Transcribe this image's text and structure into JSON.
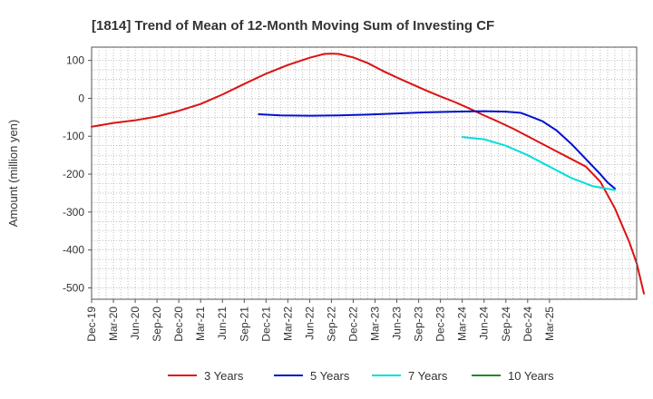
{
  "chart_data": {
    "type": "line",
    "title": "[1814]  Trend of Mean of 12-Month Moving Sum of Investing CF",
    "xlabel": "",
    "ylabel": "Amount (million yen)",
    "ylim": [
      -530,
      135
    ],
    "yticks": [
      100,
      0,
      -100,
      -200,
      -300,
      -400,
      -500
    ],
    "xlim_months": [
      0,
      75
    ],
    "x_tick_labels": [
      "Dec-19",
      "Mar-20",
      "Jun-20",
      "Sep-20",
      "Dec-20",
      "Mar-21",
      "Jun-21",
      "Sep-21",
      "Dec-21",
      "Mar-22",
      "Jun-22",
      "Sep-22",
      "Dec-22",
      "Mar-23",
      "Jun-23",
      "Sep-23",
      "Dec-23",
      "Mar-24",
      "Jun-24",
      "Sep-24",
      "Dec-24",
      "Mar-25"
    ],
    "grid": true,
    "legend_position": "bottom",
    "series": [
      {
        "name": "3 Years",
        "color": "#dd1111",
        "points": [
          [
            0,
            -75
          ],
          [
            3,
            -65
          ],
          [
            6,
            -58
          ],
          [
            9,
            -48
          ],
          [
            12,
            -33
          ],
          [
            15,
            -15
          ],
          [
            18,
            10
          ],
          [
            21,
            38
          ],
          [
            24,
            65
          ],
          [
            27,
            88
          ],
          [
            30,
            107
          ],
          [
            32,
            117
          ],
          [
            33,
            118
          ],
          [
            34,
            117
          ],
          [
            36,
            108
          ],
          [
            38,
            93
          ],
          [
            40,
            73
          ],
          [
            42,
            55
          ],
          [
            44,
            38
          ],
          [
            46,
            21
          ],
          [
            48,
            5
          ],
          [
            50,
            -10
          ],
          [
            52,
            -27
          ],
          [
            54,
            -45
          ],
          [
            56,
            -62
          ],
          [
            58,
            -80
          ],
          [
            60,
            -100
          ],
          [
            62,
            -120
          ],
          [
            64,
            -140
          ],
          [
            66,
            -160
          ],
          [
            68,
            -180
          ],
          [
            70,
            -220
          ],
          [
            72,
            -290
          ],
          [
            74,
            -380
          ],
          [
            75,
            -435
          ],
          [
            76,
            -515
          ]
        ]
      },
      {
        "name": "5 Years",
        "color": "#0011cc",
        "points": [
          [
            23,
            -42
          ],
          [
            26,
            -45
          ],
          [
            30,
            -46
          ],
          [
            34,
            -45
          ],
          [
            38,
            -43
          ],
          [
            42,
            -40
          ],
          [
            46,
            -37
          ],
          [
            50,
            -35
          ],
          [
            54,
            -34
          ],
          [
            57,
            -35
          ],
          [
            59,
            -38
          ],
          [
            60,
            -45
          ],
          [
            62,
            -60
          ],
          [
            64,
            -85
          ],
          [
            66,
            -120
          ],
          [
            68,
            -160
          ],
          [
            70,
            -200
          ],
          [
            71,
            -222
          ],
          [
            72,
            -238
          ]
        ]
      },
      {
        "name": "7 Years",
        "color": "#00dddd",
        "points": [
          [
            51,
            -102
          ],
          [
            54,
            -108
          ],
          [
            57,
            -125
          ],
          [
            60,
            -150
          ],
          [
            63,
            -180
          ],
          [
            66,
            -210
          ],
          [
            69,
            -232
          ],
          [
            72,
            -242
          ]
        ]
      },
      {
        "name": "10 Years",
        "color": "#228822",
        "points": []
      }
    ]
  }
}
